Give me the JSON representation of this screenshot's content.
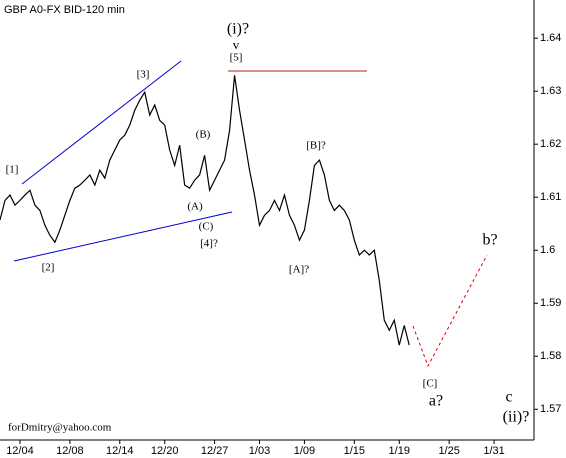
{
  "chart_data": {
    "type": "line",
    "title": "GBP A0-FX BID-120 min",
    "footer": "forDmitry@yahoo.com",
    "x": [
      0,
      1,
      2,
      3,
      4,
      5,
      6,
      7,
      8,
      9,
      10,
      11,
      12,
      13,
      14,
      15,
      16,
      17,
      18,
      19,
      20,
      21,
      22,
      23,
      24,
      25,
      26,
      27,
      28,
      29,
      30,
      31,
      32,
      33,
      34,
      35,
      36,
      37,
      38,
      39,
      40,
      41,
      42,
      43,
      44,
      45,
      46,
      47,
      48,
      49,
      50,
      51,
      52,
      53,
      54,
      55,
      56,
      57,
      58,
      59,
      60,
      61,
      62,
      63,
      64,
      65,
      66,
      67,
      68,
      69,
      70,
      71,
      72,
      73,
      74,
      75,
      76,
      77,
      78,
      79,
      80,
      81,
      82
    ],
    "series": [
      {
        "color": "#000000",
        "values": [
          1.6057,
          1.6094,
          1.6104,
          1.6085,
          1.6094,
          1.6104,
          1.6113,
          1.6085,
          1.6075,
          1.6047,
          1.6028,
          1.6015,
          1.6038,
          1.6066,
          1.6094,
          1.6117,
          1.6123,
          1.6132,
          1.6142,
          1.6123,
          1.6151,
          1.6136,
          1.617,
          1.6189,
          1.6208,
          1.6217,
          1.6236,
          1.6264,
          1.6283,
          1.6298,
          1.6255,
          1.6274,
          1.6245,
          1.6236,
          1.6189,
          1.616,
          1.6198,
          1.6123,
          1.6117,
          1.6132,
          1.6142,
          1.6179,
          1.6113,
          1.6132,
          1.6151,
          1.617,
          1.6226,
          1.633,
          1.6264,
          1.6208,
          1.6151,
          1.6104,
          1.6047,
          1.6066,
          1.6075,
          1.6094,
          1.6075,
          1.6104,
          1.6066,
          1.6047,
          1.6019,
          1.6038,
          1.6094,
          1.616,
          1.617,
          1.6142,
          1.6094,
          1.6075,
          1.6085,
          1.6075,
          1.6057,
          1.6019,
          1.5991,
          1.6,
          1.5991,
          1.6,
          1.5943,
          1.5868,
          1.5849,
          1.5868,
          1.5821,
          1.5858,
          1.5821
        ]
      }
    ],
    "xlim": [
      0,
      107
    ],
    "xticks": [
      {
        "value": 4,
        "label": "12/04"
      },
      {
        "value": 14,
        "label": "12/08"
      },
      {
        "value": 24,
        "label": "12/14"
      },
      {
        "value": 33,
        "label": "12/20"
      },
      {
        "value": 43,
        "label": "12/27"
      },
      {
        "value": 52,
        "label": "1/03"
      },
      {
        "value": 61,
        "label": "1/09"
      },
      {
        "value": 71,
        "label": "1/15"
      },
      {
        "value": 80,
        "label": "1/19"
      },
      {
        "value": 90,
        "label": "1/25"
      },
      {
        "value": 99,
        "label": "1/31"
      }
    ],
    "ylim": [
      1.5642,
      1.6472
    ],
    "yticks": [
      1.57,
      1.58,
      1.59,
      1.6,
      1.61,
      1.62,
      1.63,
      1.64
    ],
    "annotations": [
      "[1]",
      "[2]",
      "[3]",
      "(B)",
      "(A)",
      "(C)",
      "[4]?",
      "(i)?",
      "v",
      "[5]",
      "[B]?",
      "[A]?",
      "[C]",
      "a?",
      "b?",
      "c",
      "(ii)?"
    ]
  }
}
